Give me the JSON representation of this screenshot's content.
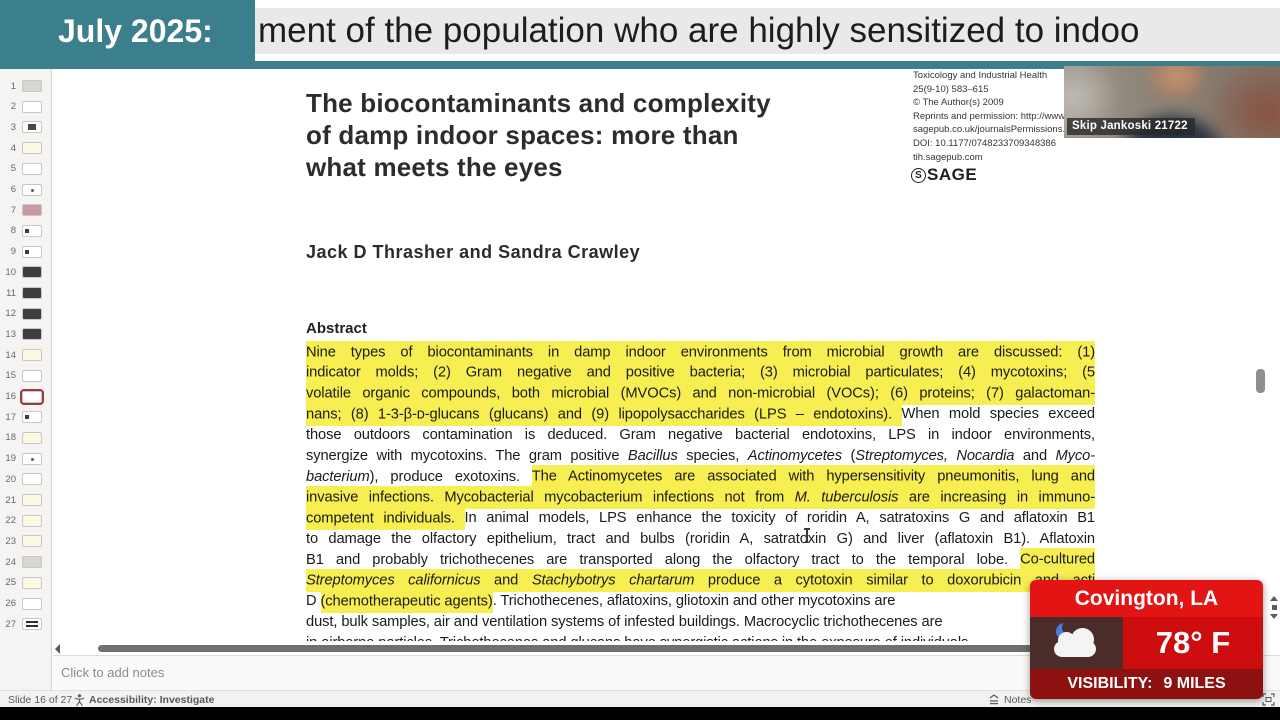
{
  "ticker": {
    "date_label": "July 2025:",
    "text": "ment of the population who are highly sensitized to indoo"
  },
  "webcam": {
    "label": "Skip Jankoski 21722"
  },
  "paper": {
    "title_lines": [
      "The biocontaminants and complexity",
      "of damp indoor spaces: more than",
      "what meets the eyes"
    ],
    "journal_lines": [
      "Toxicology and Industrial Health",
      "25(9-10) 583–615",
      "© The Author(s) 2009",
      "Reprints and permission: http://www.",
      "sagepub.co.uk/journalsPermissions.nav",
      "DOI: 10.1177/0748233709348386",
      "tih.sagepub.com"
    ],
    "publisher": "SAGE",
    "authors": "Jack D Thrasher and Sandra Crawley",
    "abstract_heading": "Abstract",
    "abstract_lines": [
      {
        "j": 1,
        "segs": [
          {
            "t": "Nine types of biocontaminants in damp indoor environments from microbial growth are discussed: (1)",
            "h": 1
          }
        ]
      },
      {
        "j": 1,
        "segs": [
          {
            "t": "indicator molds; (2) Gram negative and positive bacteria; (3) microbial particulates; (4) mycotoxins; (5",
            "h": 1
          }
        ]
      },
      {
        "j": 1,
        "segs": [
          {
            "t": "volatile organic compounds, both microbial (MVOCs) and non-microbial (VOCs); (6) proteins; (7) galactoman-",
            "h": 1
          }
        ]
      },
      {
        "j": 1,
        "segs": [
          {
            "t": "nans; (8) 1-3-β-ᴅ-glucans (glucans) and (9) lipopolysaccharides (LPS – endotoxins). ",
            "h": 1
          },
          {
            "t": "When mold species exceed"
          }
        ]
      },
      {
        "j": 1,
        "segs": [
          {
            "t": "those outdoors contamination is deduced. Gram negative bacterial endotoxins, LPS in indoor environments,"
          }
        ]
      },
      {
        "j": 1,
        "segs": [
          {
            "t": "synergize with mycotoxins. The gram positive "
          },
          {
            "t": "Bacillus",
            "i": 1
          },
          {
            "t": " species, "
          },
          {
            "t": "Actinomycetes",
            "i": 1
          },
          {
            "t": " ("
          },
          {
            "t": "Streptomyces, Nocardia",
            "i": 1
          },
          {
            "t": " and "
          },
          {
            "t": "Myco-",
            "i": 1
          }
        ]
      },
      {
        "j": 1,
        "segs": [
          {
            "t": "bacterium",
            "i": 1
          },
          {
            "t": "), produce exotoxins. "
          },
          {
            "t": "The Actinomycetes are associated with hypersensitivity pneumonitis, lung and",
            "h": 1
          }
        ]
      },
      {
        "j": 1,
        "segs": [
          {
            "t": "invasive infections. Mycobacterial mycobacterium infections not from ",
            "h": 1
          },
          {
            "t": "M. tuberculosis",
            "h": 1,
            "i": 1
          },
          {
            "t": " are increasing in immuno-",
            "h": 1
          }
        ]
      },
      {
        "j": 1,
        "segs": [
          {
            "t": "competent individuals. ",
            "h": 1
          },
          {
            "t": "In animal models, LPS enhance the toxicity of roridin A, satratoxins G and aflatoxin B1"
          }
        ]
      },
      {
        "j": 1,
        "segs": [
          {
            "t": "to damage the olfactory epithelium, tract and bulbs (roridin A, satratoxin G) and liver (aflatoxin B1). Aflatoxin"
          }
        ]
      },
      {
        "j": 1,
        "segs": [
          {
            "t": "B1 and probably trichothecenes are transported along the olfactory tract to the temporal lobe. "
          },
          {
            "t": "Co-cultured",
            "h": 1
          }
        ]
      },
      {
        "j": 1,
        "segs": [
          {
            "t": "Streptomyces californicus",
            "h": 1,
            "i": 1
          },
          {
            "t": " and ",
            "h": 1
          },
          {
            "t": "Stachybotrys chartarum",
            "h": 1,
            "i": 1
          },
          {
            "t": " produce a cytotoxin similar to doxorubicin and acti",
            "h": 1
          }
        ]
      },
      {
        "j": 0,
        "segs": [
          {
            "t": "D "
          },
          {
            "t": "(chemotherapeutic agents)",
            "h": 1
          },
          {
            "t": ". Trichothecenes, aflatoxins, gliotoxin and other mycotoxins are"
          }
        ]
      },
      {
        "j": 0,
        "segs": [
          {
            "t": "dust, bulk samples, air and ventilation systems of infested buildings. Macrocyclic trichothecenes are"
          }
        ]
      },
      {
        "j": 0,
        "clip": 1,
        "segs": [
          {
            "t": "in airborne particles. Trichothecenes and glucans have synergistic actions in the exposure of individuals"
          }
        ]
      }
    ]
  },
  "thumbnails": {
    "count": 27,
    "selected": 16,
    "slides": [
      {
        "n": 1,
        "style": "gray"
      },
      {
        "n": 2,
        "style": ""
      },
      {
        "n": 3,
        "style": "smalldark"
      },
      {
        "n": 4,
        "style": "yellow"
      },
      {
        "n": 5,
        "style": ""
      },
      {
        "n": 6,
        "style": "dot"
      },
      {
        "n": 7,
        "style": "red"
      },
      {
        "n": 8,
        "style": "dotleft"
      },
      {
        "n": 9,
        "style": "dotleft"
      },
      {
        "n": 10,
        "style": "dark"
      },
      {
        "n": 11,
        "style": "dark"
      },
      {
        "n": 12,
        "style": "dark"
      },
      {
        "n": 13,
        "style": "dark"
      },
      {
        "n": 14,
        "style": "yellow"
      },
      {
        "n": 15,
        "style": ""
      },
      {
        "n": 16,
        "style": ""
      },
      {
        "n": 17,
        "style": "dotleft"
      },
      {
        "n": 18,
        "style": "yellow"
      },
      {
        "n": 19,
        "style": "dot"
      },
      {
        "n": 20,
        "style": ""
      },
      {
        "n": 21,
        "style": "yellow"
      },
      {
        "n": 22,
        "style": "yellow"
      },
      {
        "n": 23,
        "style": "yellow"
      },
      {
        "n": 24,
        "style": "gray"
      },
      {
        "n": 25,
        "style": "yellow"
      },
      {
        "n": 26,
        "style": ""
      },
      {
        "n": 27,
        "style": "stripes"
      }
    ]
  },
  "notes": {
    "placeholder": "Click to add notes"
  },
  "statusbar": {
    "slide_indicator": "Slide 16 of 27",
    "accessibility_label": "Accessibility: Investigate",
    "notes_label": "Notes"
  },
  "weather": {
    "location": "Covington, LA",
    "temperature": "78° F",
    "visibility_label": "VISIBILITY:",
    "visibility_value": "9 MILES"
  },
  "colors": {
    "ticker_teal": "#3b7f8d",
    "highlight_yellow": "#f7ef52",
    "selected_thumb_border": "#9c3c38",
    "weather_header_red": "#e21414",
    "weather_body_red": "#cd0d0d",
    "weather_footer_red": "#8e1111",
    "weather_icon_panel": "#4a2d2b",
    "moon_blue": "#4a7de0"
  }
}
